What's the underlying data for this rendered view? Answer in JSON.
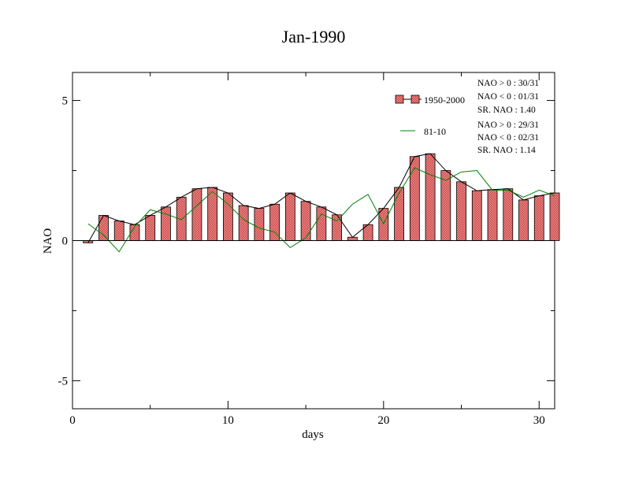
{
  "chart_data": {
    "type": "bar",
    "title": "Jan-1990",
    "xlabel": "days",
    "ylabel": "NAO",
    "xlim": [
      0,
      31
    ],
    "ylim": [
      -6,
      6
    ],
    "xticks": [
      0,
      10,
      20,
      30
    ],
    "xtick_labels": [
      "0",
      "10",
      "20",
      "30"
    ],
    "yticks": [
      -5,
      0,
      5
    ],
    "ytick_labels": [
      "-5",
      "0",
      "5"
    ],
    "grid": false,
    "legend_position": "top-right",
    "x": [
      1,
      2,
      3,
      4,
      5,
      6,
      7,
      8,
      9,
      10,
      11,
      12,
      13,
      14,
      15,
      16,
      17,
      18,
      19,
      20,
      21,
      22,
      23,
      24,
      25,
      26,
      27,
      28,
      29,
      30,
      31
    ],
    "series": [
      {
        "name": "1950-2000",
        "kind": "bar+line",
        "color": "#f08080",
        "values": [
          -0.08,
          0.9,
          0.7,
          0.57,
          0.9,
          1.2,
          1.55,
          1.85,
          1.9,
          1.7,
          1.25,
          1.15,
          1.3,
          1.7,
          1.4,
          1.2,
          0.92,
          0.12,
          0.57,
          1.15,
          1.9,
          3.0,
          3.1,
          2.5,
          2.1,
          1.78,
          1.82,
          1.85,
          1.45,
          1.6,
          1.7
        ]
      },
      {
        "name": "81-10",
        "kind": "line",
        "color": "#008000",
        "values": [
          0.6,
          0.2,
          -0.4,
          0.5,
          1.1,
          0.95,
          0.75,
          1.25,
          1.75,
          1.3,
          0.75,
          0.45,
          0.3,
          -0.25,
          0.1,
          0.95,
          0.7,
          1.3,
          1.65,
          0.6,
          1.7,
          2.6,
          2.35,
          2.15,
          2.45,
          2.5,
          1.8,
          1.8,
          1.55,
          1.8,
          1.6
        ]
      }
    ],
    "annotations": [
      {
        "id": "set1_pos",
        "text": "NAO > 0 : 30/31"
      },
      {
        "id": "set1_neg",
        "text": "NAO < 0 : 01/31"
      },
      {
        "id": "set1_sr",
        "text": "SR. NAO :  1.40"
      },
      {
        "id": "set2_pos",
        "text": "NAO > 0 : 29/31"
      },
      {
        "id": "set2_neg",
        "text": "NAO < 0 : 02/31"
      },
      {
        "id": "set2_sr",
        "text": "SR. NAO :  1.14"
      }
    ]
  }
}
